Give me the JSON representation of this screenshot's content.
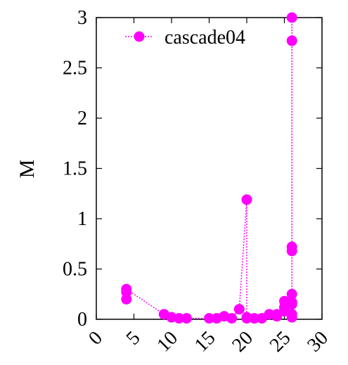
{
  "chart_data": {
    "type": "line",
    "title": "",
    "xlabel": "",
    "ylabel": "M",
    "xlim": [
      0,
      30
    ],
    "ylim": [
      0,
      3
    ],
    "x_ticks": [
      "0",
      "5",
      "10",
      "15",
      "20",
      "25",
      "30"
    ],
    "y_ticks": [
      "0",
      "0.5",
      "1",
      "1.5",
      "2",
      "2.5",
      "3"
    ],
    "grid": false,
    "legend_position": "top",
    "series": [
      {
        "name": "cascade04",
        "color": "#ff00ff",
        "x": [
          4,
          4,
          4,
          9,
          10,
          11,
          12,
          15,
          16,
          17,
          18,
          19,
          20,
          20,
          20,
          21,
          22,
          23,
          24,
          24,
          25,
          25,
          25,
          26,
          26,
          26,
          26,
          26,
          26,
          26,
          26,
          26
        ],
        "y": [
          0.2,
          0.27,
          0.3,
          0.05,
          0.02,
          0.01,
          0.01,
          0.01,
          0.01,
          0.03,
          0.01,
          0.1,
          1.19,
          0.02,
          0.01,
          0.01,
          0.01,
          0.05,
          0.03,
          0.05,
          0.08,
          0.12,
          0.18,
          0.15,
          0.25,
          0.68,
          0.72,
          2.77,
          3.0,
          0.05,
          0.02,
          0.17
        ]
      }
    ]
  }
}
